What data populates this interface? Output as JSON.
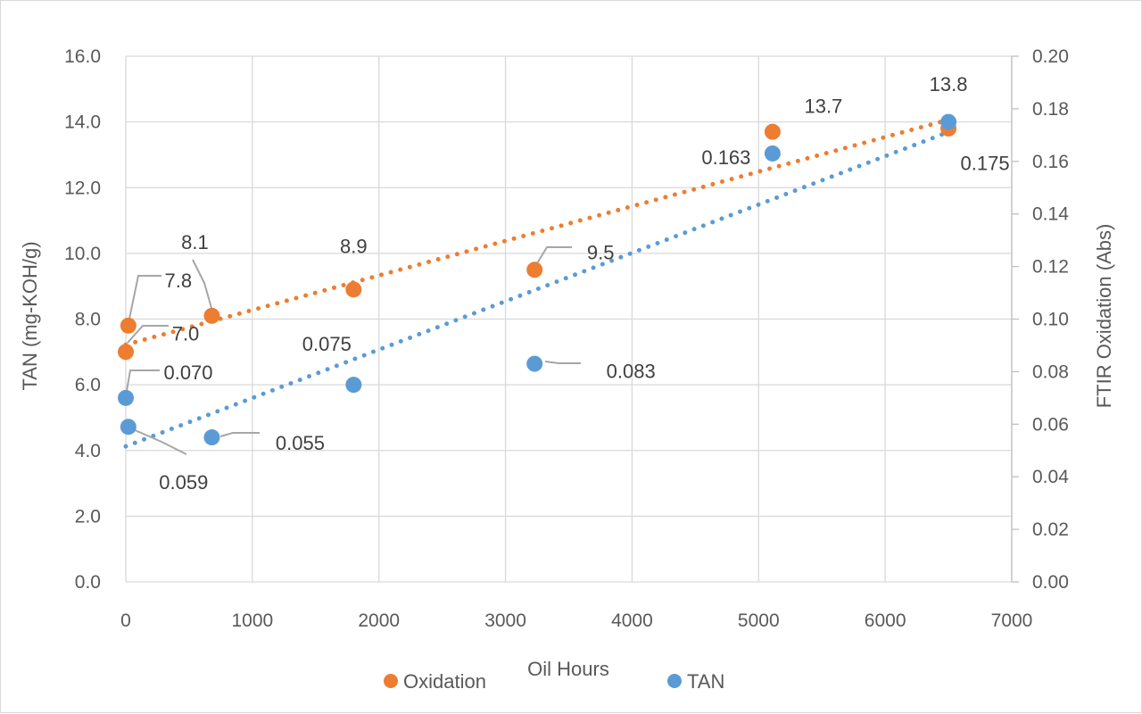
{
  "chart_data": {
    "type": "scatter",
    "title": "",
    "xlabel": "Oil Hours",
    "ylabel_left": "TAN (mg-KOH/g)",
    "ylabel_right": "FTIR Oxidation (Abs)",
    "xlim": [
      0,
      7000
    ],
    "x_ticks": [
      "0",
      "1000",
      "2000",
      "3000",
      "4000",
      "5000",
      "6000",
      "7000"
    ],
    "ylim_left": [
      0,
      16
    ],
    "y_ticks_left": [
      "0.0",
      "2.0",
      "4.0",
      "6.0",
      "8.0",
      "10.0",
      "12.0",
      "14.0",
      "16.0"
    ],
    "ylim_right": [
      0,
      0.2
    ],
    "y_ticks_right": [
      "0.00",
      "0.02",
      "0.04",
      "0.06",
      "0.08",
      "0.10",
      "0.12",
      "0.14",
      "0.16",
      "0.18",
      "0.20"
    ],
    "grid": true,
    "legend_position": "bottom",
    "series": [
      {
        "name": "Oxidation",
        "color": "#ED7D31",
        "axis": "left",
        "trendline": "linear",
        "points": [
          {
            "x": 0,
            "y": 7.0,
            "label": "7.0"
          },
          {
            "x": 20,
            "y": 7.8,
            "label": "7.8"
          },
          {
            "x": 680,
            "y": 8.1,
            "label": "8.1"
          },
          {
            "x": 1800,
            "y": 8.9,
            "label": "8.9"
          },
          {
            "x": 3230,
            "y": 9.5,
            "label": "9.5"
          },
          {
            "x": 5110,
            "y": 13.7,
            "label": "13.7"
          },
          {
            "x": 6500,
            "y": 13.8,
            "label": "13.8"
          }
        ]
      },
      {
        "name": "TAN",
        "color": "#5B9BD5",
        "axis": "right",
        "trendline": "linear",
        "points": [
          {
            "x": 0,
            "y": 0.07,
            "label": "0.070"
          },
          {
            "x": 20,
            "y": 0.059,
            "label": "0.059"
          },
          {
            "x": 680,
            "y": 0.055,
            "label": "0.055"
          },
          {
            "x": 1800,
            "y": 0.075,
            "label": "0.075"
          },
          {
            "x": 3230,
            "y": 0.083,
            "label": "0.083"
          },
          {
            "x": 5110,
            "y": 0.163,
            "label": "0.163"
          },
          {
            "x": 6500,
            "y": 0.175,
            "label": "0.175"
          }
        ]
      }
    ]
  }
}
